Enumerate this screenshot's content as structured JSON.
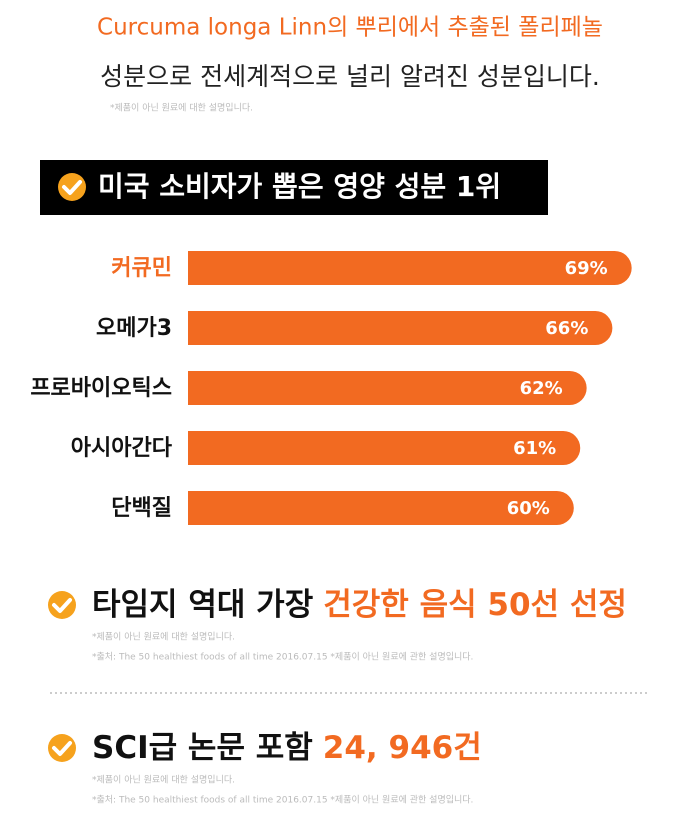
{
  "header": {
    "line1": "Curcuma longa Linn의 뿌리에서 추출된 폴리페놀",
    "line2": "성분으로 전세계적으로 널리 알려진 성분입니다.",
    "note": "*제품이 아닌 원료에 대한 설명입니다."
  },
  "chart_data": {
    "type": "bar",
    "title": "미국 소비자가 뽑은 영양 성분 1위",
    "categories": [
      "커큐민",
      "오메가3",
      "프로바이오틱스",
      "아시아간다",
      "단백질"
    ],
    "values": [
      69,
      66,
      62,
      61,
      60
    ],
    "value_labels": [
      "69%",
      "66%",
      "62%",
      "61%",
      "60%"
    ],
    "color": "#f26a21",
    "highlight_color": "#f26a21"
  },
  "sections": [
    {
      "title": "타임지 역대 가장",
      "highlight": "건강한 음식 50선 선정",
      "notes": [
        "*제품이 아닌 원료에 대한 설명입니다.",
        "*출처: The 50 healthiest foods of all time 2016.07.15  *제품이 아닌 원료에 관한 설명입니다."
      ]
    },
    {
      "title": "SCI급 논문 포함",
      "highlight": "24, 946건",
      "notes": [
        "*제품이 아닌 원료에 대한 설명입니다.",
        "*출처: The 50 healthiest foods of all time 2016.07.15  *제품이 아닌 원료에 관한 설명입니다."
      ]
    }
  ]
}
